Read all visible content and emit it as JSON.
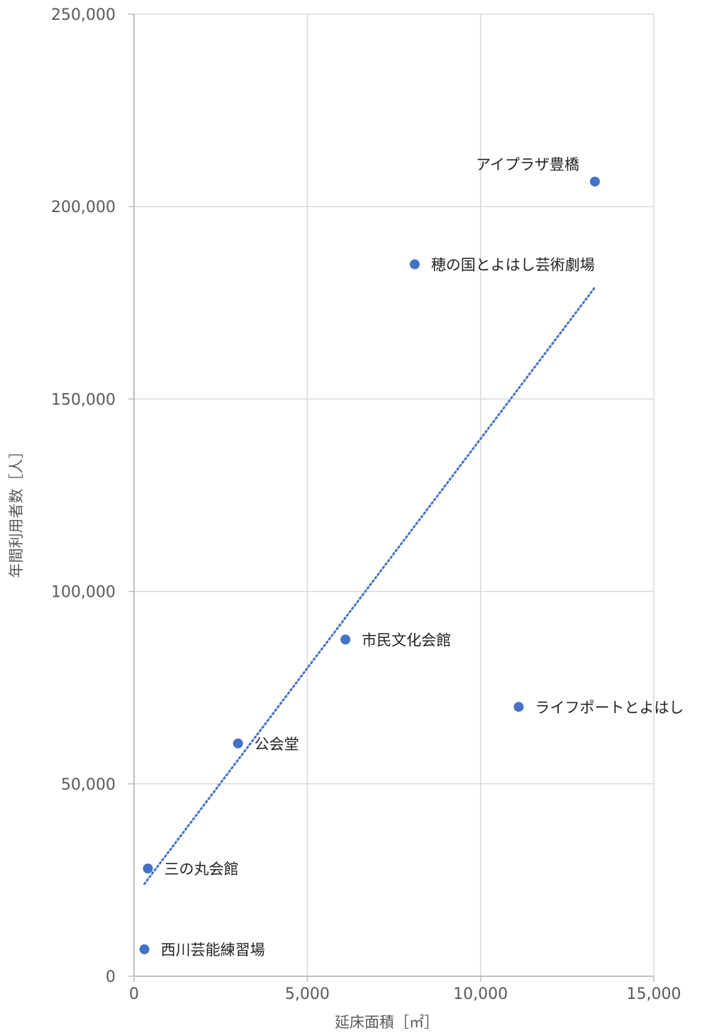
{
  "chart_data": {
    "type": "scatter",
    "xlabel": "延床面積［㎡］",
    "ylabel": "年間利用者数［人］",
    "xlim": [
      0,
      15000
    ],
    "ylim": [
      0,
      250000
    ],
    "x_ticks": [
      0,
      5000,
      10000,
      15000
    ],
    "x_tick_labels": [
      "0",
      "5,000",
      "10,000",
      "15,000"
    ],
    "y_ticks": [
      0,
      50000,
      100000,
      150000,
      200000,
      250000
    ],
    "y_tick_labels": [
      "0",
      "50,000",
      "100,000",
      "150,000",
      "200,000",
      "250,000"
    ],
    "grid": true,
    "series": [
      {
        "points": [
          {
            "x": 13300,
            "y": 206500,
            "label": "アイプラザ豊橋"
          },
          {
            "x": 8100,
            "y": 185000,
            "label": "穂の国とよはし芸術劇場"
          },
          {
            "x": 6100,
            "y": 87500,
            "label": "市民文化会館"
          },
          {
            "x": 11100,
            "y": 70000,
            "label": "ライフポートとよはし"
          },
          {
            "x": 3000,
            "y": 60500,
            "label": "公会堂"
          },
          {
            "x": 400,
            "y": 28000,
            "label": "三の丸会館"
          },
          {
            "x": 300,
            "y": 7000,
            "label": "西川芸能練習場"
          }
        ]
      }
    ],
    "trendline": {
      "type": "linear",
      "style": "dotted",
      "from": {
        "x": 300,
        "y": 24000
      },
      "to": {
        "x": 13300,
        "y": 179000
      }
    },
    "colors": {
      "marker": "#4472C4",
      "trendline": "#4472C4",
      "grid": "#D9D9D9",
      "axis": "#BFBFBF",
      "tick_text": "#595959",
      "label_text": "#222222"
    }
  }
}
